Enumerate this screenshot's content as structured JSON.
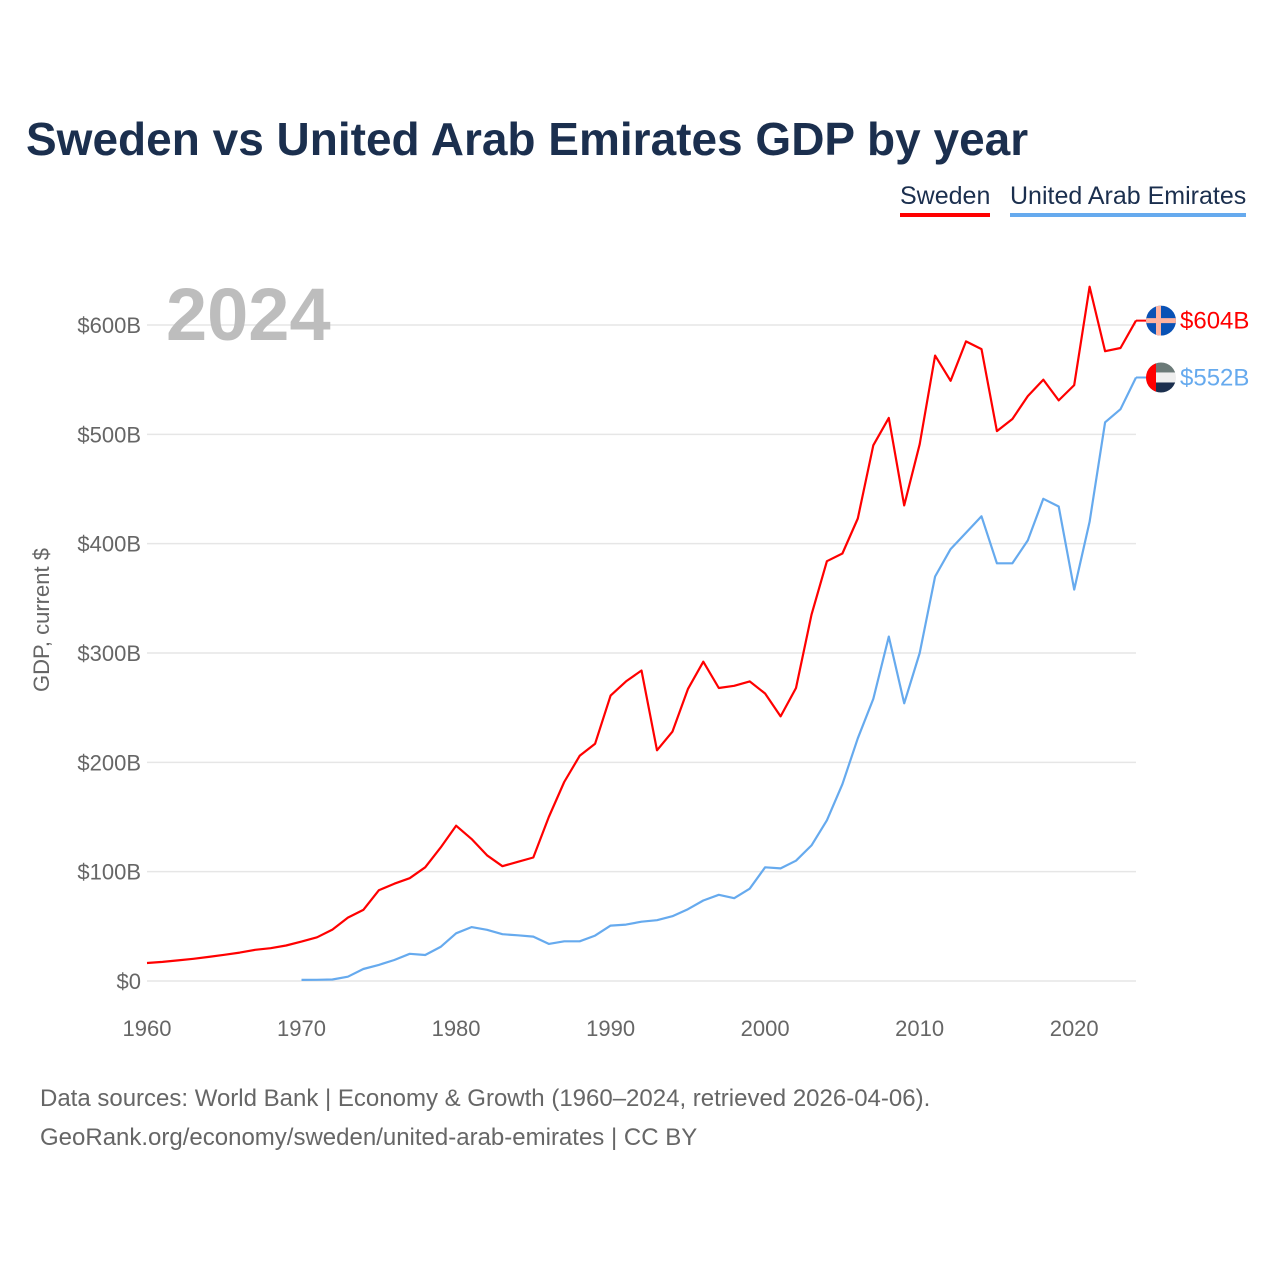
{
  "chart_data": {
    "type": "line",
    "title": "Sweden vs United Arab Emirates GDP by year",
    "ylabel": "GDP, current $",
    "xlabel": "",
    "year_label": "2024",
    "xlim": [
      1960,
      2024
    ],
    "ylim": [
      0,
      650
    ],
    "x_ticks": [
      1960,
      1970,
      1980,
      1990,
      2000,
      2010,
      2020
    ],
    "x_tick_labels": [
      "1960",
      "1970",
      "1980",
      "1990",
      "2000",
      "2010",
      "2020"
    ],
    "y_ticks": [
      0,
      100,
      200,
      300,
      400,
      500,
      600
    ],
    "y_tick_labels": [
      "$0",
      "$100B",
      "$200B",
      "$300B",
      "$400B",
      "$500B",
      "$600B"
    ],
    "grid": true,
    "legend_placement": "top-right",
    "series": [
      {
        "name": "Sweden",
        "color": "#ff0000",
        "end_label": "$604B",
        "x_start": 1960,
        "values": [
          16.5,
          17.5,
          18.8,
          20.3,
          22,
          24,
          26,
          28.5,
          30,
          32.5,
          36,
          40,
          47,
          58,
          65,
          83,
          89,
          94,
          104,
          122,
          142,
          130,
          115,
          105,
          109,
          113,
          150,
          182,
          206,
          217,
          261,
          274,
          284,
          211,
          228,
          267,
          292,
          268,
          270,
          274,
          263,
          242,
          268,
          335,
          384,
          391,
          423,
          490,
          515,
          435,
          491,
          572,
          549,
          585,
          578,
          503,
          514,
          535,
          550,
          531,
          545,
          635,
          576,
          579,
          604
        ]
      },
      {
        "name": "United Arab Emirates",
        "color": "#66aaee",
        "end_label": "$552B",
        "x_start": 1970,
        "values": [
          1,
          1.1,
          1.4,
          3.9,
          11,
          14.7,
          19.2,
          24.9,
          23.8,
          31.2,
          43.6,
          49.3,
          46.8,
          42.8,
          41.8,
          40.6,
          33.9,
          36.3,
          36.3,
          41.5,
          50.7,
          51.6,
          54.2,
          55.6,
          59.3,
          65.7,
          73.6,
          78.8,
          75.7,
          84.4,
          104,
          103,
          110,
          124,
          147,
          180,
          222,
          258,
          315,
          254,
          300,
          370,
          395,
          410,
          425,
          382,
          382,
          403,
          441,
          434,
          358,
          420,
          511,
          523,
          552
        ]
      }
    ]
  },
  "footer": {
    "line1": "Data sources: World Bank | Economy & Growth (1960–2024, retrieved 2026-04-06).",
    "line2": "GeoRank.org/economy/sweden/united-arab-emirates | CC BY"
  }
}
